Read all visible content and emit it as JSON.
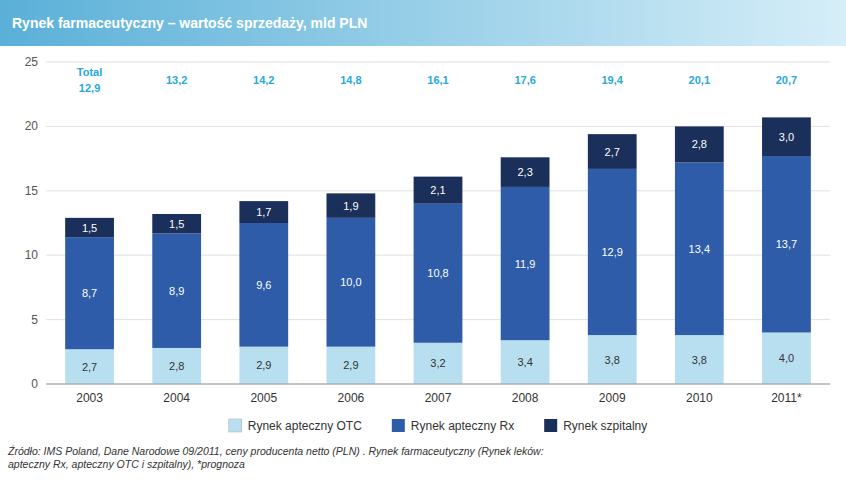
{
  "chart_data": {
    "type": "bar",
    "stacked": true,
    "title": "Rynek farmaceutyczny – wartość sprzedaży, mld PLN",
    "title_colors": [
      "#5ab0d8",
      "#d6eef8"
    ],
    "categories": [
      "2003",
      "2004",
      "2005",
      "2006",
      "2007",
      "2008",
      "2009",
      "2010",
      "2011*"
    ],
    "series": [
      {
        "name": "Rynek apteczny OTC",
        "color": "#b8dff0",
        "values": [
          2.7,
          2.8,
          2.9,
          2.9,
          3.2,
          3.4,
          3.8,
          3.8,
          4.0
        ],
        "value_labels": [
          "2,7",
          "2,8",
          "2,9",
          "2,9",
          "3,2",
          "3,4",
          "3,8",
          "3,8",
          "4,0"
        ]
      },
      {
        "name": "Rynek apteczny Rx",
        "color": "#2e5ca8",
        "values": [
          8.7,
          8.9,
          9.6,
          10.0,
          10.8,
          11.9,
          12.9,
          13.4,
          13.7
        ],
        "value_labels": [
          "8,7",
          "8,9",
          "9,6",
          "10,0",
          "10,8",
          "11,9",
          "12,9",
          "13,4",
          "13,7"
        ]
      },
      {
        "name": "Rynek szpitalny",
        "color": "#1a2f5a",
        "values": [
          1.5,
          1.5,
          1.7,
          1.9,
          2.1,
          2.3,
          2.7,
          2.8,
          3.0
        ],
        "value_labels": [
          "1,5",
          "1,5",
          "1,7",
          "1,9",
          "2,1",
          "2,3",
          "2,7",
          "2,8",
          "3,0"
        ]
      }
    ],
    "totals": {
      "label": "Total",
      "color": "#29a8e0",
      "values": [
        12.9,
        13.2,
        14.2,
        14.8,
        16.1,
        17.6,
        19.4,
        20.1,
        20.7
      ],
      "value_labels": [
        "12,9",
        "13,2",
        "14,2",
        "14,8",
        "16,1",
        "17,6",
        "19,4",
        "20,1",
        "20,7"
      ]
    },
    "ylim": [
      0,
      25
    ],
    "yticks": [
      0,
      5,
      10,
      15,
      20,
      25
    ],
    "grid": true,
    "data_labels": true,
    "legend": "bottom",
    "footnote": "Źródło: IMS Poland, Dane Narodowe 09/2011, ceny producenta netto (PLN) . Rynek farmaceutyczny (Rynek leków:\napteczny Rx, apteczny OTC i szpitalny),  *prognoza"
  }
}
